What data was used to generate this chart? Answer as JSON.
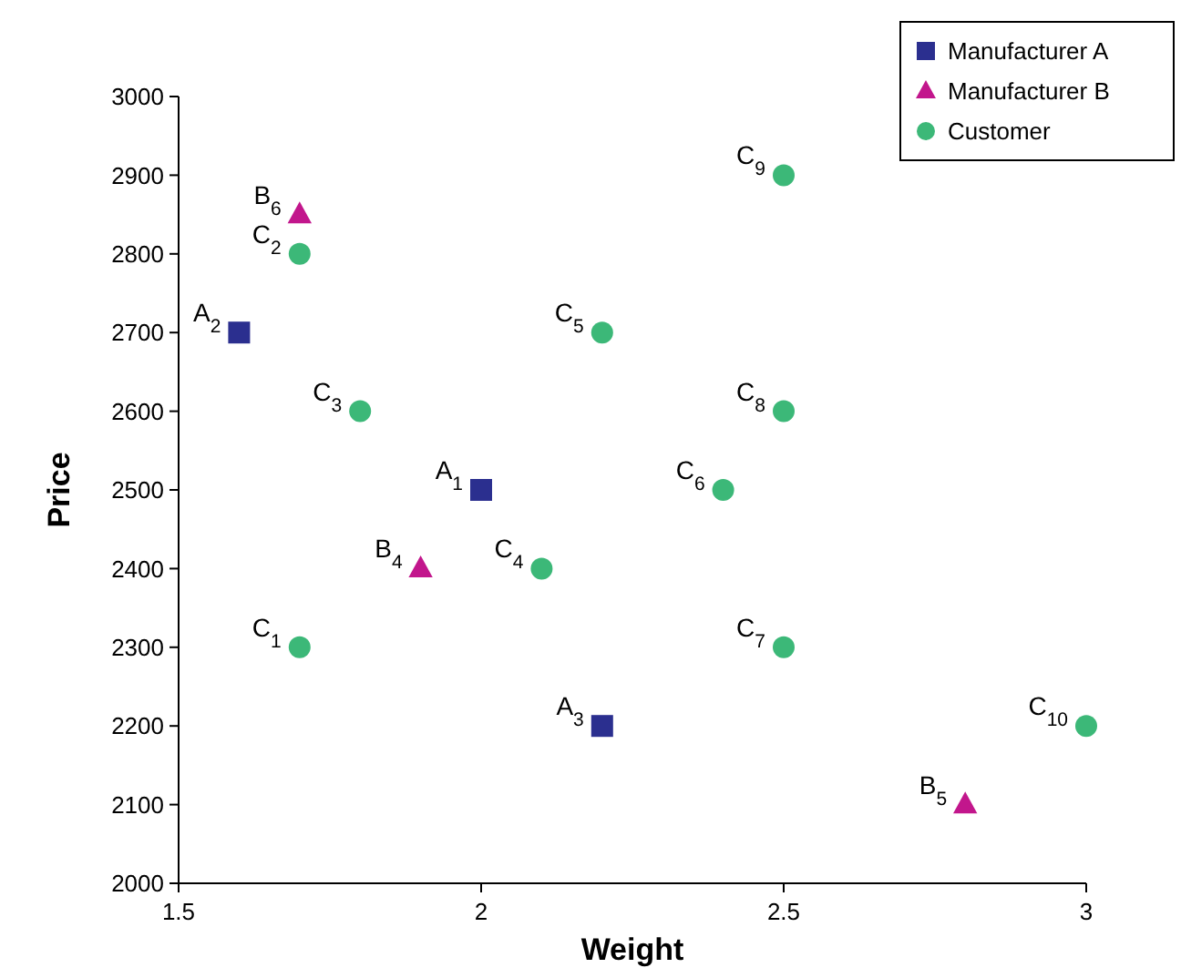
{
  "chart_data": {
    "type": "scatter",
    "xlabel": "Weight",
    "ylabel": "Price",
    "xlim": [
      1.5,
      3
    ],
    "xticks": [
      1.5,
      2,
      2.5,
      3
    ],
    "ylim": [
      2000,
      3000
    ],
    "yticks": [
      2000,
      2100,
      2200,
      2300,
      2400,
      2500,
      2600,
      2700,
      2800,
      2900,
      3000
    ],
    "grid": false,
    "legend": "top right",
    "series": [
      {
        "name": "Manufacturer A",
        "color": "#2b2f8f",
        "marker": "square",
        "x": [
          2,
          1.6,
          2.2
        ],
        "values": [
          2500,
          2700,
          2200
        ]
      },
      {
        "name": "Manufacturer B",
        "color": "#c2168c",
        "marker": "triangle",
        "x": [
          1.9,
          2.8,
          1.7
        ],
        "values": [
          2400,
          2100,
          2850
        ]
      },
      {
        "name": "Customer",
        "color": "#3cb878",
        "marker": "circle",
        "x": [
          1.7,
          1.7,
          1.8,
          2.1,
          2.2,
          2.4,
          2.5,
          2.5,
          2.5,
          3
        ],
        "values": [
          2300,
          2800,
          2600,
          2400,
          2700,
          2500,
          2300,
          2600,
          2900,
          2200
        ]
      }
    ],
    "annotations": [
      {
        "text": "A$_{1}$",
        "x": 2,
        "y": 2500
      },
      {
        "text": "A$_{2}$",
        "x": 1.6,
        "y": 2700
      },
      {
        "text": "A$_{3}$",
        "x": 2.2,
        "y": 2200
      },
      {
        "text": "B$_{4}$",
        "x": 1.9,
        "y": 2400
      },
      {
        "text": "B$_{5}$",
        "x": 2.8,
        "y": 2100
      },
      {
        "text": "B$_{6}$",
        "x": 1.7,
        "y": 2850
      },
      {
        "text": "C$_{1}$",
        "x": 1.7,
        "y": 2300
      },
      {
        "text": "C$_{2}$",
        "x": 1.7,
        "y": 2800
      },
      {
        "text": "C$_{3}$",
        "x": 1.8,
        "y": 2600
      },
      {
        "text": "C$_{4}$",
        "x": 2.1,
        "y": 2400
      },
      {
        "text": "C$_{5}$",
        "x": 2.2,
        "y": 2700
      },
      {
        "text": "C$_{6}$",
        "x": 2.4,
        "y": 2500
      },
      {
        "text": "C$_{7}$",
        "x": 2.5,
        "y": 2300
      },
      {
        "text": "C$_{8}$",
        "x": 2.5,
        "y": 2600
      },
      {
        "text": "C$_{9}$",
        "x": 2.5,
        "y": 2900
      },
      {
        "text": "C$_{10}$",
        "x": 3,
        "y": 2200
      }
    ]
  }
}
